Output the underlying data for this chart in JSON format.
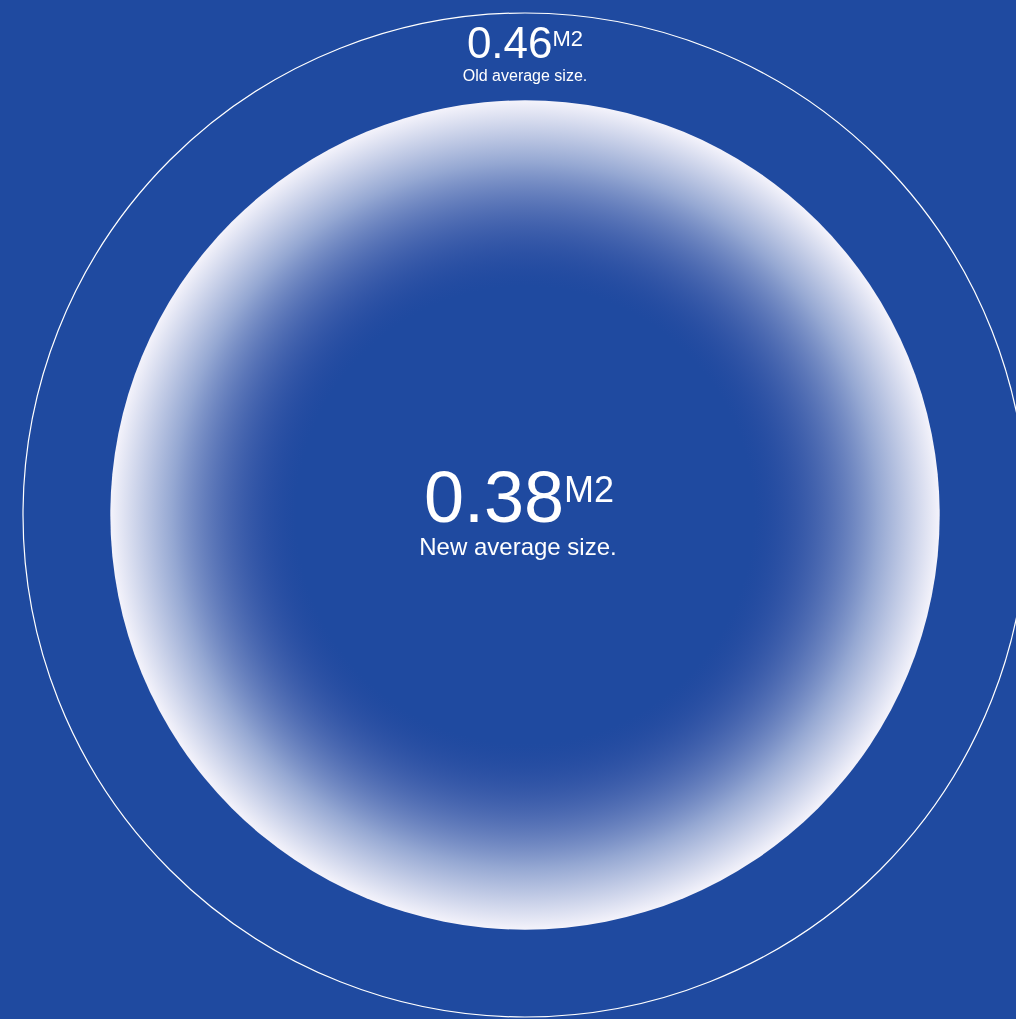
{
  "chart_data": {
    "type": "other",
    "categories": [
      "Old average size.",
      "New average size."
    ],
    "values": [
      0.46,
      0.38
    ],
    "value_labels": [
      "0.46$^{M2}$",
      "0.38$^{M2}$"
    ],
    "colors": [
      "#ffffff",
      "#f4f3fb"
    ]
  }
}
